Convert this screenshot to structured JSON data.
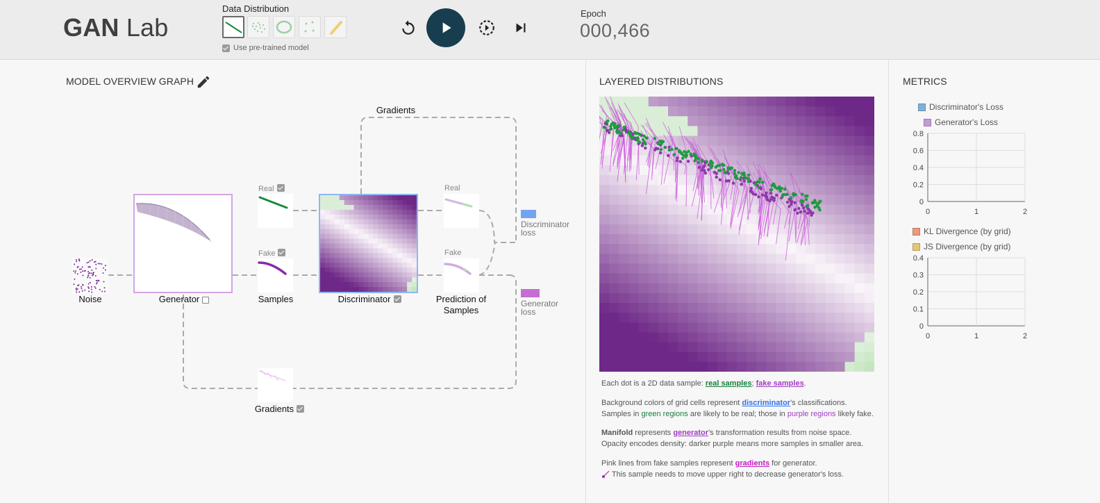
{
  "header": {
    "logo_bold": "GAN",
    "logo_light": "Lab",
    "data_distribution_label": "Data Distribution",
    "pretrained_label": "Use pre-trained model",
    "epoch_label": "Epoch",
    "epoch_value": "000,466",
    "distributions": [
      "line-icon",
      "gaussian-cluster-icon",
      "ring-icon",
      "disjoint-dots-icon",
      "draw-brush-icon"
    ]
  },
  "graph": {
    "title": "MODEL OVERVIEW GRAPH",
    "gradients_top": "Gradients",
    "noise": "Noise",
    "generator": "Generator",
    "real_small": "Real",
    "fake_small": "Fake",
    "samples": "Samples",
    "discriminator": "Discriminator",
    "real_small_right": "Real",
    "fake_small_right": "Fake",
    "prediction_l1": "Prediction of",
    "prediction_l2": "Samples",
    "disc_loss_l1": "Discriminator",
    "disc_loss_l2": "loss",
    "gen_loss_l1": "Generator",
    "gen_loss_l2": "loss",
    "gradients_bottom": "Gradients"
  },
  "layered": {
    "title": "LAYERED DISTRIBUTIONS",
    "p1_a": "Each dot is a 2D data sample: ",
    "p1_real": "real samples",
    "p1_b": "; ",
    "p1_fake": "fake samples",
    "p1_c": ".",
    "p2_a": "Background colors of grid cells represent ",
    "p2_disc": "discriminator",
    "p2_b": "'s classifications.",
    "p2_c": "Samples in ",
    "p2_green": "green regions",
    "p2_d": " are likely to be real; those in ",
    "p2_purple": "purple regions",
    "p2_e": " likely fake.",
    "p3_bold": "Manifold",
    "p3_a": " represents ",
    "p3_gen": "generator",
    "p3_b": "'s transformation results from noise space.",
    "p3_c": "Opacity encodes density: darker purple means more samples in smaller area.",
    "p4_a": "Pink lines from fake samples represent ",
    "p4_grad": "gradients",
    "p4_b": " for generator.",
    "p4_c": " This sample needs to move upper right to decrease generator's loss."
  },
  "metrics": {
    "title": "METRICS",
    "legend1": "Discriminator's Loss",
    "legend2": "Generator's Loss",
    "legend3": "KL Divergence (by grid)",
    "legend4": "JS Divergence (by grid)",
    "colors": {
      "disc": "#7fb2d8",
      "gen": "#c49ad8",
      "kl": "#ec9a7c",
      "js": "#e6c675"
    }
  },
  "chart_data": [
    {
      "type": "line",
      "series": [
        {
          "name": "Discriminator's Loss",
          "values": []
        },
        {
          "name": "Generator's Loss",
          "values": []
        }
      ],
      "x_ticks": [
        "0",
        "1",
        "2"
      ],
      "y_ticks": [
        "0",
        "0.2",
        "0.4",
        "0.6",
        "0.8"
      ],
      "xlim": [
        0,
        2
      ],
      "ylim": [
        0,
        0.8
      ],
      "grid": true
    },
    {
      "type": "line",
      "series": [
        {
          "name": "KL Divergence (by grid)",
          "values": []
        },
        {
          "name": "JS Divergence (by grid)",
          "values": []
        }
      ],
      "x_ticks": [
        "0",
        "1",
        "2"
      ],
      "y_ticks": [
        "0",
        "0.1",
        "0.2",
        "0.3",
        "0.4"
      ],
      "xlim": [
        0,
        2
      ],
      "ylim": [
        0,
        0.4
      ],
      "grid": true
    }
  ]
}
